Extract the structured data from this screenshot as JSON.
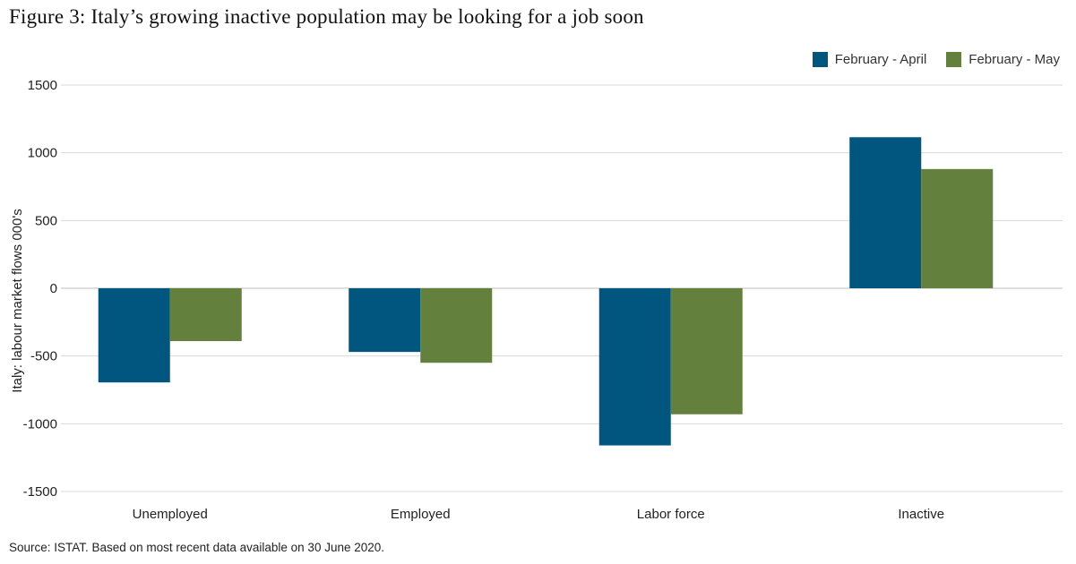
{
  "title": "Figure 3: Italy’s growing inactive population may be looking for a job soon",
  "source": "Source:  ISTAT. Based on most recent data available on 30 June 2020.",
  "colors": {
    "series1": "#00567f",
    "series2": "#63803c",
    "grid": "#d9d9d9",
    "zero": "#bdbdbd"
  },
  "chart_data": {
    "type": "bar",
    "title": "Figure 3: Italy’s growing inactive population may be looking for a job soon",
    "xlabel": "",
    "ylabel": "Italy: labour market flows 000's",
    "categories": [
      "Unemployed",
      "Employed",
      "Labor force",
      "Inactive"
    ],
    "series": [
      {
        "name": "February - April",
        "values": [
          -695,
          -470,
          -1160,
          1115
        ]
      },
      {
        "name": "February - May",
        "values": [
          -390,
          -550,
          -930,
          880
        ]
      }
    ],
    "ylim": [
      -1500,
      1500
    ],
    "yticks": [
      1500,
      1000,
      500,
      0,
      -500,
      -1000,
      -1500
    ],
    "ytick_labels": [
      "1500",
      "1000",
      "500",
      "0",
      "-500",
      "-1000",
      "-1500"
    ],
    "grid": true,
    "legend_position": "top-right"
  }
}
